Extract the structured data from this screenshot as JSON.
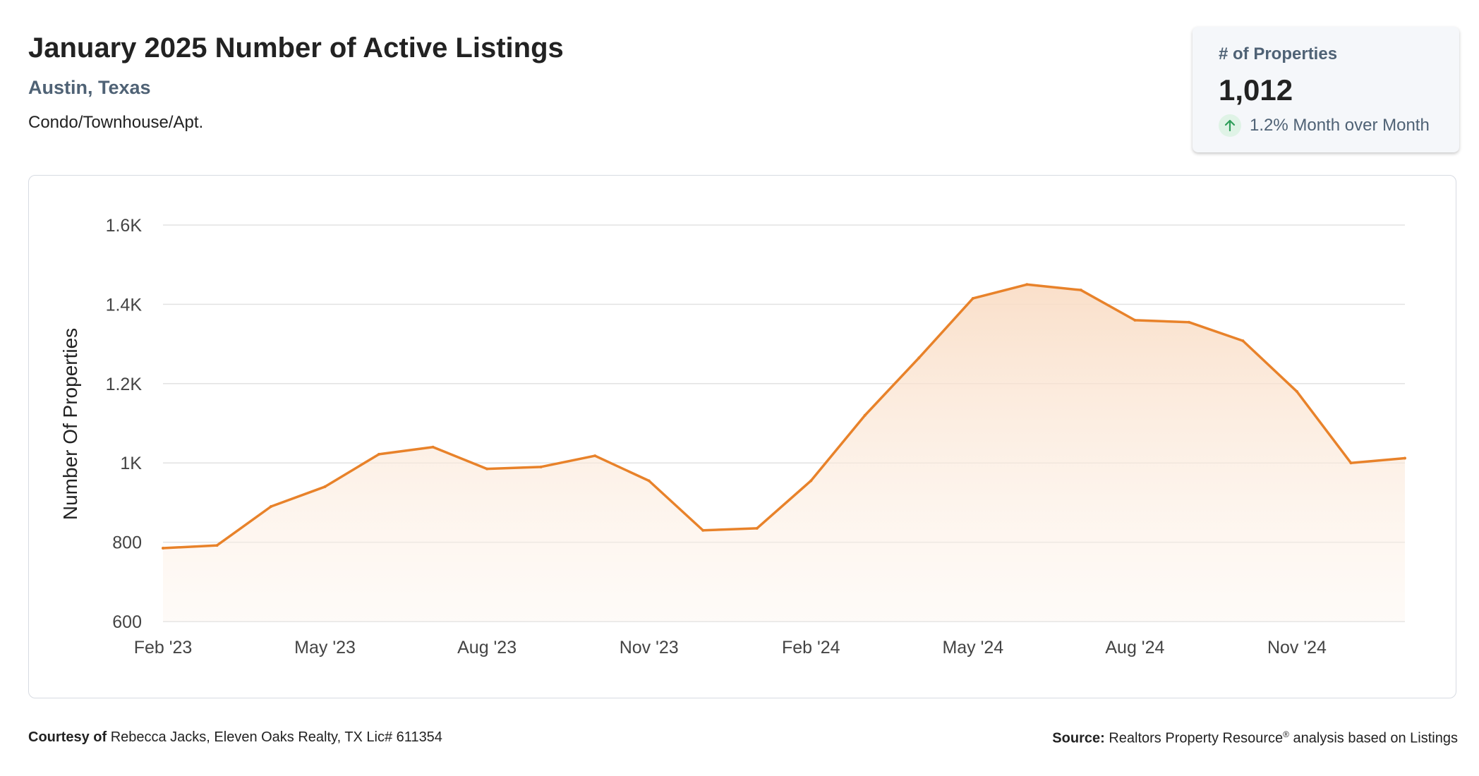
{
  "header": {
    "title": "January 2025 Number of Active Listings",
    "location": "Austin, Texas",
    "property_type": "Condo/Townhouse/Apt."
  },
  "stat_card": {
    "label": "# of Properties",
    "value": "1,012",
    "change_text": "1.2% Month over Month",
    "change_icon": "arrow-up-icon"
  },
  "footer": {
    "courtesy_label": "Courtesy of",
    "courtesy_text": "Rebecca Jacks, Eleven Oaks Realty, TX Lic# 611354",
    "source_label": "Source:",
    "source_text_1": "Realtors Property Resource",
    "source_sup": "®",
    "source_text_2": " analysis based on Listings"
  },
  "colors": {
    "line": "#e8822a",
    "area_top": "#f9dcc4",
    "grid": "#e2e2e2",
    "accent_text": "#4f6275",
    "up_arrow": "#2f9e5a"
  },
  "chart_data": {
    "type": "area",
    "ylabel": "Number Of Properties",
    "ylim": [
      600,
      1600
    ],
    "yticks": [
      600,
      800,
      1000,
      1200,
      1400,
      1600
    ],
    "ytick_labels": [
      "600",
      "800",
      "1K",
      "1.2K",
      "1.4K",
      "1.6K"
    ],
    "x": [
      "Feb '23",
      "Mar '23",
      "Apr '23",
      "May '23",
      "Jun '23",
      "Jul '23",
      "Aug '23",
      "Sep '23",
      "Oct '23",
      "Nov '23",
      "Dec '23",
      "Jan '24",
      "Feb '24",
      "Mar '24",
      "Apr '24",
      "May '24",
      "Jun '24",
      "Jul '24",
      "Aug '24",
      "Sep '24",
      "Oct '24",
      "Nov '24",
      "Dec '24",
      "Jan '25"
    ],
    "xtick_labels": [
      "Feb '23",
      "May '23",
      "Aug '23",
      "Nov '23",
      "Feb '24",
      "May '24",
      "Aug '24",
      "Nov '24"
    ],
    "xtick_every": 3,
    "series": [
      {
        "values": [
          785,
          792,
          890,
          940,
          1022,
          1040,
          985,
          990,
          1018,
          955,
          830,
          835,
          955,
          1120,
          1265,
          1415,
          1450,
          1436,
          1360,
          1355,
          1308,
          1180,
          1000,
          1012
        ]
      }
    ],
    "grid": true,
    "legend": "none"
  }
}
